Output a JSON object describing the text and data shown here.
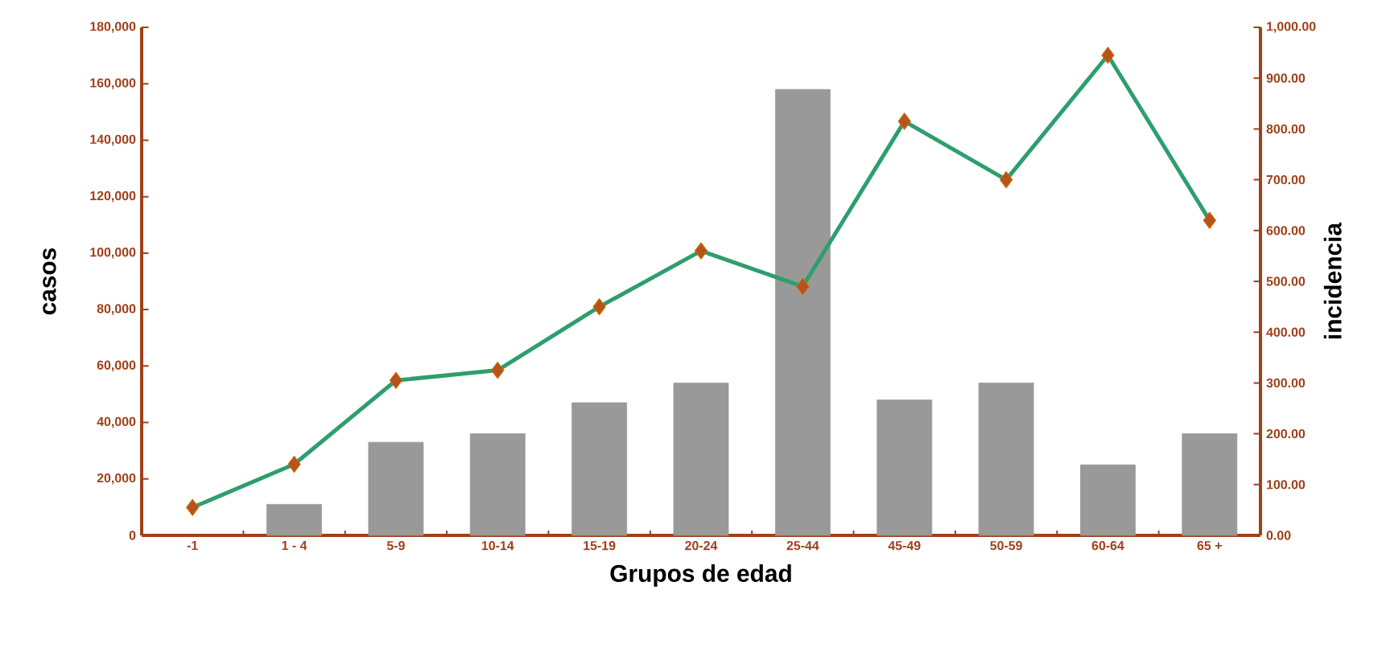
{
  "chart_data": {
    "type": "bar",
    "xlabel": "Grupos de edad",
    "ylabel": "casos",
    "y2label": "incidencia",
    "categories": [
      "-1",
      "1 - 4",
      "5-9",
      "10-14",
      "15-19",
      "20-24",
      "25-44",
      "45-49",
      "50-59",
      "60-64",
      "65 +"
    ],
    "series": [
      {
        "color": "#999999",
        "values": [
          null,
          11000,
          33000,
          36000,
          47000,
          54000,
          158000,
          48000,
          54000,
          25000,
          36000
        ]
      },
      {
        "type": "line",
        "axis": "y2",
        "color": "#2e9e6e",
        "marker": "diamond",
        "values": [
          55,
          140,
          305,
          325,
          450,
          560,
          490,
          815,
          700,
          945,
          620
        ]
      }
    ],
    "ylim": [
      0,
      180000
    ],
    "yticks": [
      {
        "value": 0,
        "label": "0"
      },
      {
        "value": 20000,
        "label": "20,000"
      },
      {
        "value": 40000,
        "label": "40,000"
      },
      {
        "value": 60000,
        "label": "60,000"
      },
      {
        "value": 80000,
        "label": "80,000"
      },
      {
        "value": 100000,
        "label": "100,000"
      },
      {
        "value": 120000,
        "label": "120,000"
      },
      {
        "value": 140000,
        "label": "140,000"
      },
      {
        "value": 160000,
        "label": "160,000"
      },
      {
        "value": 180000,
        "label": "180,000"
      }
    ],
    "y2lim": [
      0,
      1000
    ],
    "y2ticks": [
      {
        "value": 0,
        "label": "0.00"
      },
      {
        "value": 100,
        "label": "100.00"
      },
      {
        "value": 200,
        "label": "200.00"
      },
      {
        "value": 300,
        "label": "300.00"
      },
      {
        "value": 400,
        "label": "400.00"
      },
      {
        "value": 500,
        "label": "500.00"
      },
      {
        "value": 600,
        "label": "600.00"
      },
      {
        "value": 700,
        "label": "700.00"
      },
      {
        "value": 800,
        "label": "800.00"
      },
      {
        "value": 900,
        "label": "900.00"
      },
      {
        "value": 1000,
        "label": "1,000.00"
      }
    ]
  }
}
